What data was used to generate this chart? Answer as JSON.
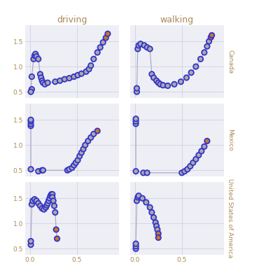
{
  "background_color": "#ffffff",
  "panel_bg": "#eeeef5",
  "line_color": "#aaaacc",
  "point_edge_color": "#3333cc",
  "point_face_color": "#aaaaaa",
  "highlight_face_color": "#cc7722",
  "title_color": "#aa8855",
  "axis_color": "#aa8855",
  "tick_color": "#aa8855",
  "grid_color": "#ccccdd",
  "col_labels": [
    "driving",
    "walking"
  ],
  "row_labels": [
    "Canada",
    "Mexico",
    "United States of America"
  ],
  "xlim": [
    -0.05,
    0.95
  ],
  "ylim": [
    0.38,
    1.82
  ],
  "xticks": [
    0.0,
    0.5
  ],
  "yticks": [
    0.5,
    1.0,
    1.5
  ],
  "point_size": 28,
  "line_width": 0.9,
  "point_edge_width": 1.3,
  "series": {
    "Canada_driving": {
      "x": [
        0.02,
        0.01,
        0.02,
        0.04,
        0.05,
        0.06,
        0.07,
        0.09,
        0.11,
        0.12,
        0.13,
        0.14,
        0.16,
        0.19,
        0.27,
        0.32,
        0.37,
        0.42,
        0.47,
        0.51,
        0.55,
        0.6,
        0.63,
        0.65,
        0.68,
        0.72,
        0.75,
        0.78,
        0.81,
        0.83
      ],
      "y": [
        0.55,
        0.5,
        0.8,
        1.15,
        1.22,
        1.25,
        1.2,
        1.15,
        0.85,
        0.78,
        0.72,
        0.68,
        0.65,
        0.68,
        0.7,
        0.72,
        0.75,
        0.77,
        0.8,
        0.83,
        0.86,
        0.9,
        0.95,
        1.02,
        1.15,
        1.28,
        1.38,
        1.48,
        1.57,
        1.65
      ],
      "highlight": [
        28,
        29
      ]
    },
    "Canada_walking": {
      "x": [
        0.02,
        0.02,
        0.03,
        0.04,
        0.06,
        0.1,
        0.13,
        0.16,
        0.18,
        0.2,
        0.23,
        0.25,
        0.27,
        0.3,
        0.35,
        0.42,
        0.49,
        0.55,
        0.6,
        0.65,
        0.7,
        0.74,
        0.77,
        0.79,
        0.81,
        0.82
      ],
      "y": [
        0.5,
        0.57,
        1.35,
        1.42,
        1.45,
        1.42,
        1.38,
        1.35,
        0.85,
        0.78,
        0.72,
        0.68,
        0.65,
        0.63,
        0.62,
        0.65,
        0.7,
        0.78,
        0.88,
        1.0,
        1.15,
        1.28,
        1.4,
        1.5,
        1.58,
        1.62
      ],
      "highlight": [
        24,
        25
      ]
    },
    "Mexico_driving": {
      "x": [
        0.01,
        0.01,
        0.01,
        0.01,
        0.01,
        0.09,
        0.13,
        0.14,
        0.4,
        0.42,
        0.45,
        0.47,
        0.49,
        0.51,
        0.53,
        0.55,
        0.57,
        0.59,
        0.62,
        0.65,
        0.68,
        0.72
      ],
      "y": [
        1.38,
        1.42,
        1.47,
        1.5,
        0.52,
        0.48,
        0.5,
        0.5,
        0.5,
        0.52,
        0.55,
        0.6,
        0.65,
        0.7,
        0.78,
        0.85,
        0.92,
        1.0,
        1.08,
        1.15,
        1.22,
        1.28
      ],
      "highlight": [
        21
      ]
    },
    "Mexico_walking": {
      "x": [
        0.01,
        0.01,
        0.01,
        0.01,
        0.09,
        0.13,
        0.5,
        0.53,
        0.56,
        0.59,
        0.62,
        0.65,
        0.68,
        0.71,
        0.74,
        0.77
      ],
      "y": [
        1.42,
        1.47,
        1.52,
        0.48,
        0.45,
        0.45,
        0.45,
        0.48,
        0.52,
        0.58,
        0.65,
        0.72,
        0.8,
        0.88,
        0.97,
        1.08
      ],
      "highlight": [
        15
      ]
    },
    "United States of America_driving": {
      "x": [
        0.01,
        0.01,
        0.02,
        0.03,
        0.05,
        0.07,
        0.09,
        0.11,
        0.13,
        0.15,
        0.17,
        0.18,
        0.19,
        0.2,
        0.21,
        0.22,
        0.23,
        0.24,
        0.24,
        0.25,
        0.26,
        0.27,
        0.28,
        0.29
      ],
      "y": [
        0.58,
        0.65,
        1.38,
        1.45,
        1.48,
        1.45,
        1.4,
        1.35,
        1.3,
        1.28,
        1.32,
        1.36,
        1.4,
        1.45,
        1.5,
        1.55,
        1.58,
        1.58,
        1.52,
        1.45,
        1.35,
        1.22,
        0.88,
        0.7
      ],
      "highlight": [
        22,
        23
      ]
    },
    "United States of America_walking": {
      "x": [
        0.01,
        0.01,
        0.01,
        0.02,
        0.03,
        0.04,
        0.08,
        0.12,
        0.16,
        0.18,
        0.2,
        0.22,
        0.23,
        0.24,
        0.25,
        0.25
      ],
      "y": [
        0.5,
        0.55,
        0.6,
        1.45,
        1.52,
        1.55,
        1.5,
        1.42,
        1.32,
        1.22,
        1.12,
        1.02,
        0.95,
        0.88,
        0.8,
        0.72
      ],
      "highlight": [
        14,
        15
      ]
    }
  }
}
